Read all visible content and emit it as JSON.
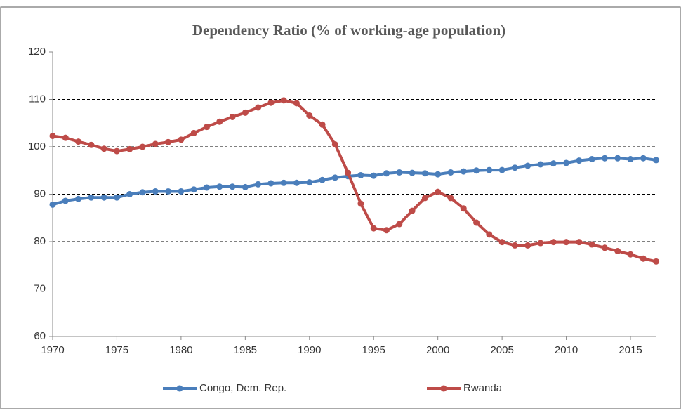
{
  "chart_data": {
    "type": "line",
    "title": "Dependency Ratio (% of working-age population)",
    "x": [
      1970,
      1971,
      1972,
      1973,
      1974,
      1975,
      1976,
      1977,
      1978,
      1979,
      1980,
      1981,
      1982,
      1983,
      1984,
      1985,
      1986,
      1987,
      1988,
      1989,
      1990,
      1991,
      1992,
      1993,
      1994,
      1995,
      1996,
      1997,
      1998,
      1999,
      2000,
      2001,
      2002,
      2003,
      2004,
      2005,
      2006,
      2007,
      2008,
      2009,
      2010,
      2011,
      2012,
      2013,
      2014,
      2015,
      2016,
      2017
    ],
    "series": [
      {
        "name": "Congo, Dem. Rep.",
        "color": "#4a7ebb",
        "values": [
          87.8,
          88.6,
          89.0,
          89.3,
          89.3,
          89.3,
          90.0,
          90.4,
          90.6,
          90.6,
          90.6,
          91.0,
          91.4,
          91.6,
          91.6,
          91.5,
          92.1,
          92.3,
          92.4,
          92.4,
          92.5,
          93.0,
          93.5,
          93.8,
          94.0,
          93.9,
          94.4,
          94.6,
          94.5,
          94.4,
          94.2,
          94.6,
          94.8,
          95.0,
          95.1,
          95.1,
          95.6,
          96.0,
          96.3,
          96.5,
          96.6,
          97.1,
          97.4,
          97.6,
          97.6,
          97.4,
          97.6,
          97.2
        ]
      },
      {
        "name": "Rwanda",
        "color": "#be4b48",
        "values": [
          102.3,
          101.9,
          101.1,
          100.4,
          99.6,
          99.1,
          99.5,
          100.0,
          100.6,
          101.0,
          101.5,
          102.9,
          104.2,
          105.3,
          106.3,
          107.2,
          108.3,
          109.3,
          109.8,
          109.2,
          106.6,
          104.7,
          100.5,
          94.5,
          88.0,
          82.8,
          82.4,
          83.7,
          86.5,
          89.2,
          90.5,
          89.2,
          87.0,
          84.0,
          81.5,
          79.9,
          79.2,
          79.2,
          79.7,
          79.9,
          79.9,
          79.9,
          79.4,
          78.7,
          78.0,
          77.3,
          76.4,
          75.8
        ]
      }
    ],
    "xlim": [
      1970,
      2017
    ],
    "xticks": [
      1970,
      1975,
      1980,
      1985,
      1990,
      1995,
      2000,
      2005,
      2010,
      2015
    ],
    "ylim": [
      60,
      120
    ],
    "yticks": [
      60,
      70,
      80,
      90,
      100,
      110,
      120
    ],
    "grid": true,
    "legend": "bottom"
  }
}
